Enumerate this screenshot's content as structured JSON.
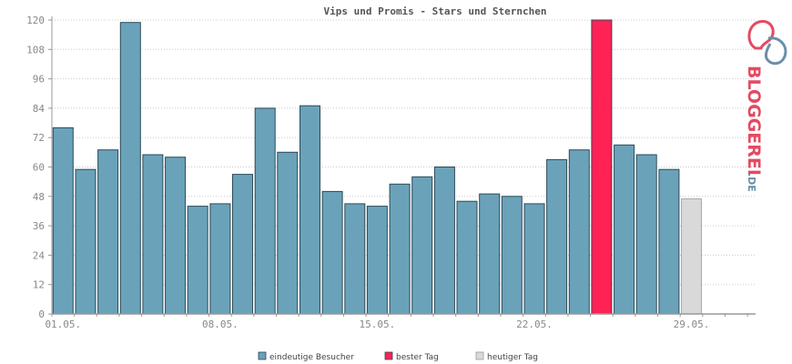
{
  "chart_data": {
    "type": "bar",
    "title": "Vips und Promis - Stars und Sternchen",
    "xlabel": "",
    "ylabel": "",
    "ylim": [
      0,
      120
    ],
    "yticks": [
      0,
      12,
      24,
      36,
      48,
      60,
      72,
      84,
      96,
      108,
      120
    ],
    "xtick_labels": [
      "01.05.",
      "08.05.",
      "15.05.",
      "22.05.",
      "29.05."
    ],
    "grid": true,
    "legend_position": "bottom",
    "categories": [
      "01.05.",
      "02.05.",
      "03.05.",
      "04.05.",
      "05.05.",
      "06.05.",
      "07.05.",
      "08.05.",
      "09.05.",
      "10.05.",
      "11.05.",
      "12.05.",
      "13.05.",
      "14.05.",
      "15.05.",
      "16.05.",
      "17.05.",
      "18.05.",
      "19.05.",
      "20.05.",
      "21.05.",
      "22.05.",
      "23.05.",
      "24.05.",
      "25.05.",
      "26.05.",
      "27.05.",
      "28.05.",
      "29.05.",
      "30.05.",
      "31.05."
    ],
    "series": [
      {
        "name": "eindeutige Besucher",
        "color": "#6aa2ba",
        "values": [
          76,
          59,
          67,
          119,
          65,
          64,
          44,
          45,
          57,
          84,
          66,
          85,
          50,
          45,
          44,
          53,
          56,
          60,
          46,
          49,
          48,
          45,
          63,
          67,
          120,
          69,
          65,
          59,
          47,
          null,
          null
        ]
      }
    ],
    "best_day": {
      "category": "25.05.",
      "value": 120
    },
    "today": {
      "category": "29.05.",
      "value": 47
    },
    "legend": [
      {
        "label": "eindeutige Besucher",
        "color": "#6aa2ba"
      },
      {
        "label": "bester Tag",
        "color": "#ff2255"
      },
      {
        "label": "heutiger Tag",
        "color": "#d9d9d9"
      }
    ]
  },
  "branding": {
    "name": "BLOGGEREI",
    "suffix": ".DE",
    "logo_icon": "bloggerei-logo-icon",
    "colors": {
      "primary": "#e34b63",
      "secondary": "#6b8fa8"
    }
  },
  "colors": {
    "bar": "#6aa2ba",
    "best": "#ff2255",
    "today": "#d9d9d9",
    "bar_stroke": "#2c4a58",
    "grid": "#cccccc",
    "axis": "#999999"
  }
}
